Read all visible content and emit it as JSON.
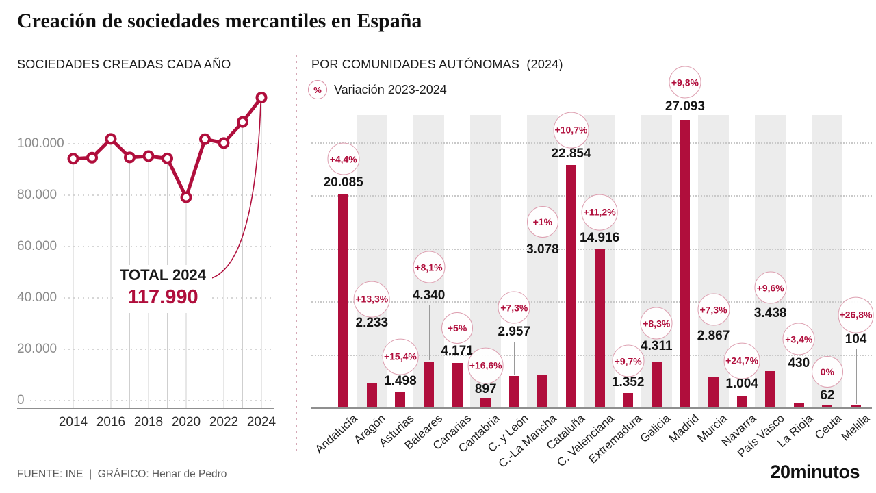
{
  "title": "Creación de sociedades mercantiles en España",
  "colors": {
    "accent": "#b00e3c",
    "badge_border": "#dd9fb0",
    "stripe": "#ececec",
    "grid": "#c9c9c9",
    "drop_line": "#cfcfcf",
    "leader": "#9a9a9a",
    "axis": "#8f8f8f",
    "muted_text": "#8c8c8c"
  },
  "footer": {
    "source": "FUENTE: INE  |  GRÁFICO: Henar de Pedro",
    "brand": "20minutos"
  },
  "chart_data": [
    {
      "type": "line",
      "title": "SOCIEDADES CREADAS CADA AÑO",
      "x": [
        2014,
        2015,
        2016,
        2017,
        2018,
        2019,
        2020,
        2021,
        2022,
        2023,
        2024
      ],
      "values": [
        94200,
        94600,
        101900,
        94700,
        95200,
        94300,
        79200,
        101800,
        100300,
        108500,
        117990
      ],
      "ylim": [
        0,
        120000
      ],
      "ytick_values": [
        0,
        20000,
        40000,
        60000,
        80000,
        100000
      ],
      "ytick_labels": [
        "0",
        "20.000",
        "40.000",
        "60.000",
        "80.000",
        "100.000"
      ],
      "xtick_labels": [
        "2014",
        "2016",
        "2018",
        "2020",
        "2022",
        "2024"
      ],
      "grid": true,
      "annotation": {
        "label": "TOTAL 2024",
        "value": "117.990"
      }
    },
    {
      "type": "bar",
      "title": "POR COMUNIDADES AUTÓNOMAS  (2024)",
      "legend": {
        "symbol": "%",
        "label": "Variación 2023-2024"
      },
      "categories": [
        "Andalucía",
        "Aragón",
        "Asturias",
        "Baleares",
        "Canarias",
        "Cantabria",
        "C. y León",
        "C.-La Mancha",
        "Cataluña",
        "C. Valenciana",
        "Extremadura",
        "Galicia",
        "Madrid",
        "Murcia",
        "Navarra",
        "País Vasco",
        "La Rioja",
        "Ceuta",
        "Melilla"
      ],
      "values": [
        20085,
        2233,
        1498,
        4340,
        4171,
        897,
        2957,
        3078,
        22854,
        14916,
        1352,
        4311,
        27093,
        2867,
        1004,
        3438,
        430,
        62,
        104
      ],
      "value_labels": [
        "20.085",
        "2.233",
        "1.498",
        "4.340",
        "4.171",
        "897",
        "2.957",
        "3.078",
        "22.854",
        "14.916",
        "1.352",
        "4.311",
        "27.093",
        "2.867",
        "1.004",
        "3.438",
        "430",
        "62",
        "104"
      ],
      "variation_labels": [
        "+4,4%",
        "+13,3%",
        "+15,4%",
        "+8,1%",
        "+5%",
        "+16,6%",
        "+7,3%",
        "+1%",
        "+10,7%",
        "+11,2%",
        "+9,7%",
        "+8,3%",
        "+9,8%",
        "+7,3%",
        "+24,7%",
        "+9,6%",
        "+3,4%",
        "0%",
        "+26,8%"
      ],
      "ylim": [
        0,
        27500
      ],
      "gridline_values": [
        5000,
        10000,
        15000,
        20000,
        25000
      ],
      "grid": true,
      "legend_position": "top-left"
    }
  ]
}
